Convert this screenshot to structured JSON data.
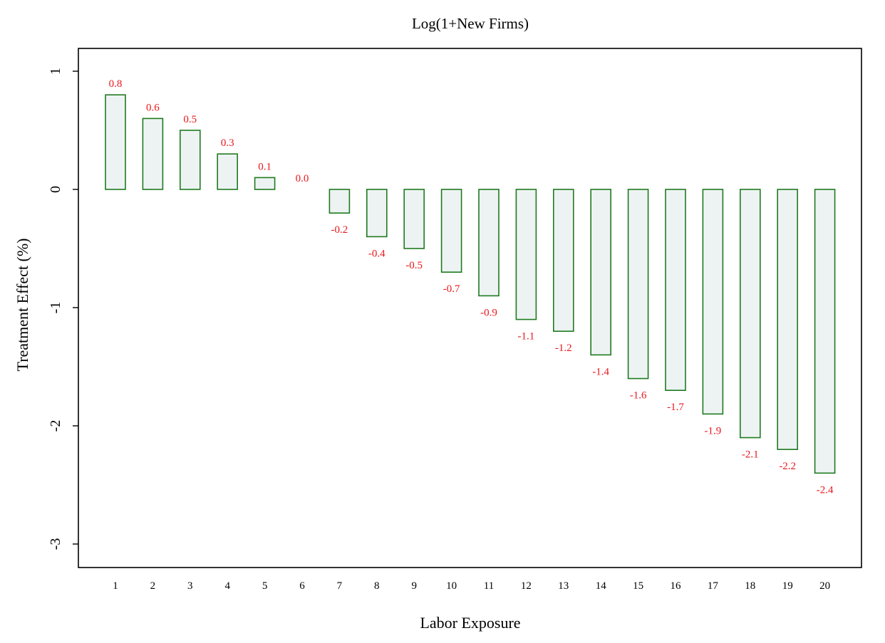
{
  "chart_data": {
    "type": "bar",
    "title": "Log(1+New Firms)",
    "xlabel": "Labor Exposure",
    "ylabel": "Treatment Effect (%)",
    "categories": [
      "1",
      "2",
      "3",
      "4",
      "5",
      "6",
      "7",
      "8",
      "9",
      "10",
      "11",
      "12",
      "13",
      "14",
      "15",
      "16",
      "17",
      "18",
      "19",
      "20"
    ],
    "values": [
      0.8,
      0.6,
      0.5,
      0.3,
      0.1,
      0.0,
      -0.2,
      -0.4,
      -0.5,
      -0.7,
      -0.9,
      -1.1,
      -1.2,
      -1.4,
      -1.6,
      -1.7,
      -1.9,
      -2.1,
      -2.2,
      -2.4
    ],
    "data_labels": [
      "0.8",
      "0.6",
      "0.5",
      "0.3",
      "0.1",
      "0.0",
      "-0.2",
      "-0.4",
      "-0.5",
      "-0.7",
      "-0.9",
      "-1.1",
      "-1.2",
      "-1.4",
      "-1.6",
      "-1.7",
      "-1.9",
      "-2.1",
      "-2.2",
      "-2.4"
    ],
    "ylim": [
      -3.2,
      1.2
    ],
    "yticks": [
      1,
      0,
      -1,
      -2,
      -3
    ],
    "ytick_labels": [
      "1",
      "0",
      "-1",
      "-2",
      "-3"
    ],
    "grid": false,
    "colors": {
      "bar_fill": "#edf3f3",
      "bar_stroke": "#1f7a1f",
      "label": "#e8161c"
    }
  }
}
